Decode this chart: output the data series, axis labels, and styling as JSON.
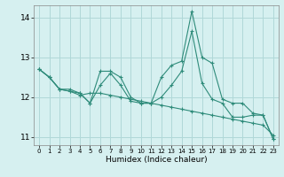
{
  "xlabel": "Humidex (Indice chaleur)",
  "ylabel": "",
  "background_color": "#d6f0f0",
  "grid_color": "#b0d8d8",
  "line_color": "#2e8b7a",
  "xlim": [
    -0.5,
    23.5
  ],
  "ylim": [
    10.8,
    14.3
  ],
  "yticks": [
    11,
    12,
    13,
    14
  ],
  "xticks": [
    0,
    1,
    2,
    3,
    4,
    5,
    6,
    7,
    8,
    9,
    10,
    11,
    12,
    13,
    14,
    15,
    16,
    17,
    18,
    19,
    20,
    21,
    22,
    23
  ],
  "series": [
    [
      12.7,
      12.5,
      12.2,
      12.2,
      12.1,
      11.85,
      12.65,
      12.65,
      12.5,
      12.0,
      11.85,
      11.85,
      12.5,
      12.8,
      12.9,
      14.15,
      13.0,
      12.85,
      11.95,
      11.85,
      11.85,
      11.6,
      11.55,
      10.95
    ],
    [
      12.7,
      12.5,
      12.2,
      12.15,
      12.1,
      11.85,
      12.3,
      12.6,
      12.3,
      11.9,
      11.85,
      11.85,
      12.0,
      12.3,
      12.65,
      13.65,
      12.35,
      11.95,
      11.85,
      11.5,
      11.5,
      11.55,
      11.55,
      10.95
    ],
    [
      12.7,
      12.5,
      12.2,
      12.15,
      12.05,
      12.1,
      12.1,
      12.05,
      12.0,
      11.95,
      11.9,
      11.85,
      11.8,
      11.75,
      11.7,
      11.65,
      11.6,
      11.55,
      11.5,
      11.45,
      11.4,
      11.35,
      11.3,
      11.05
    ]
  ]
}
